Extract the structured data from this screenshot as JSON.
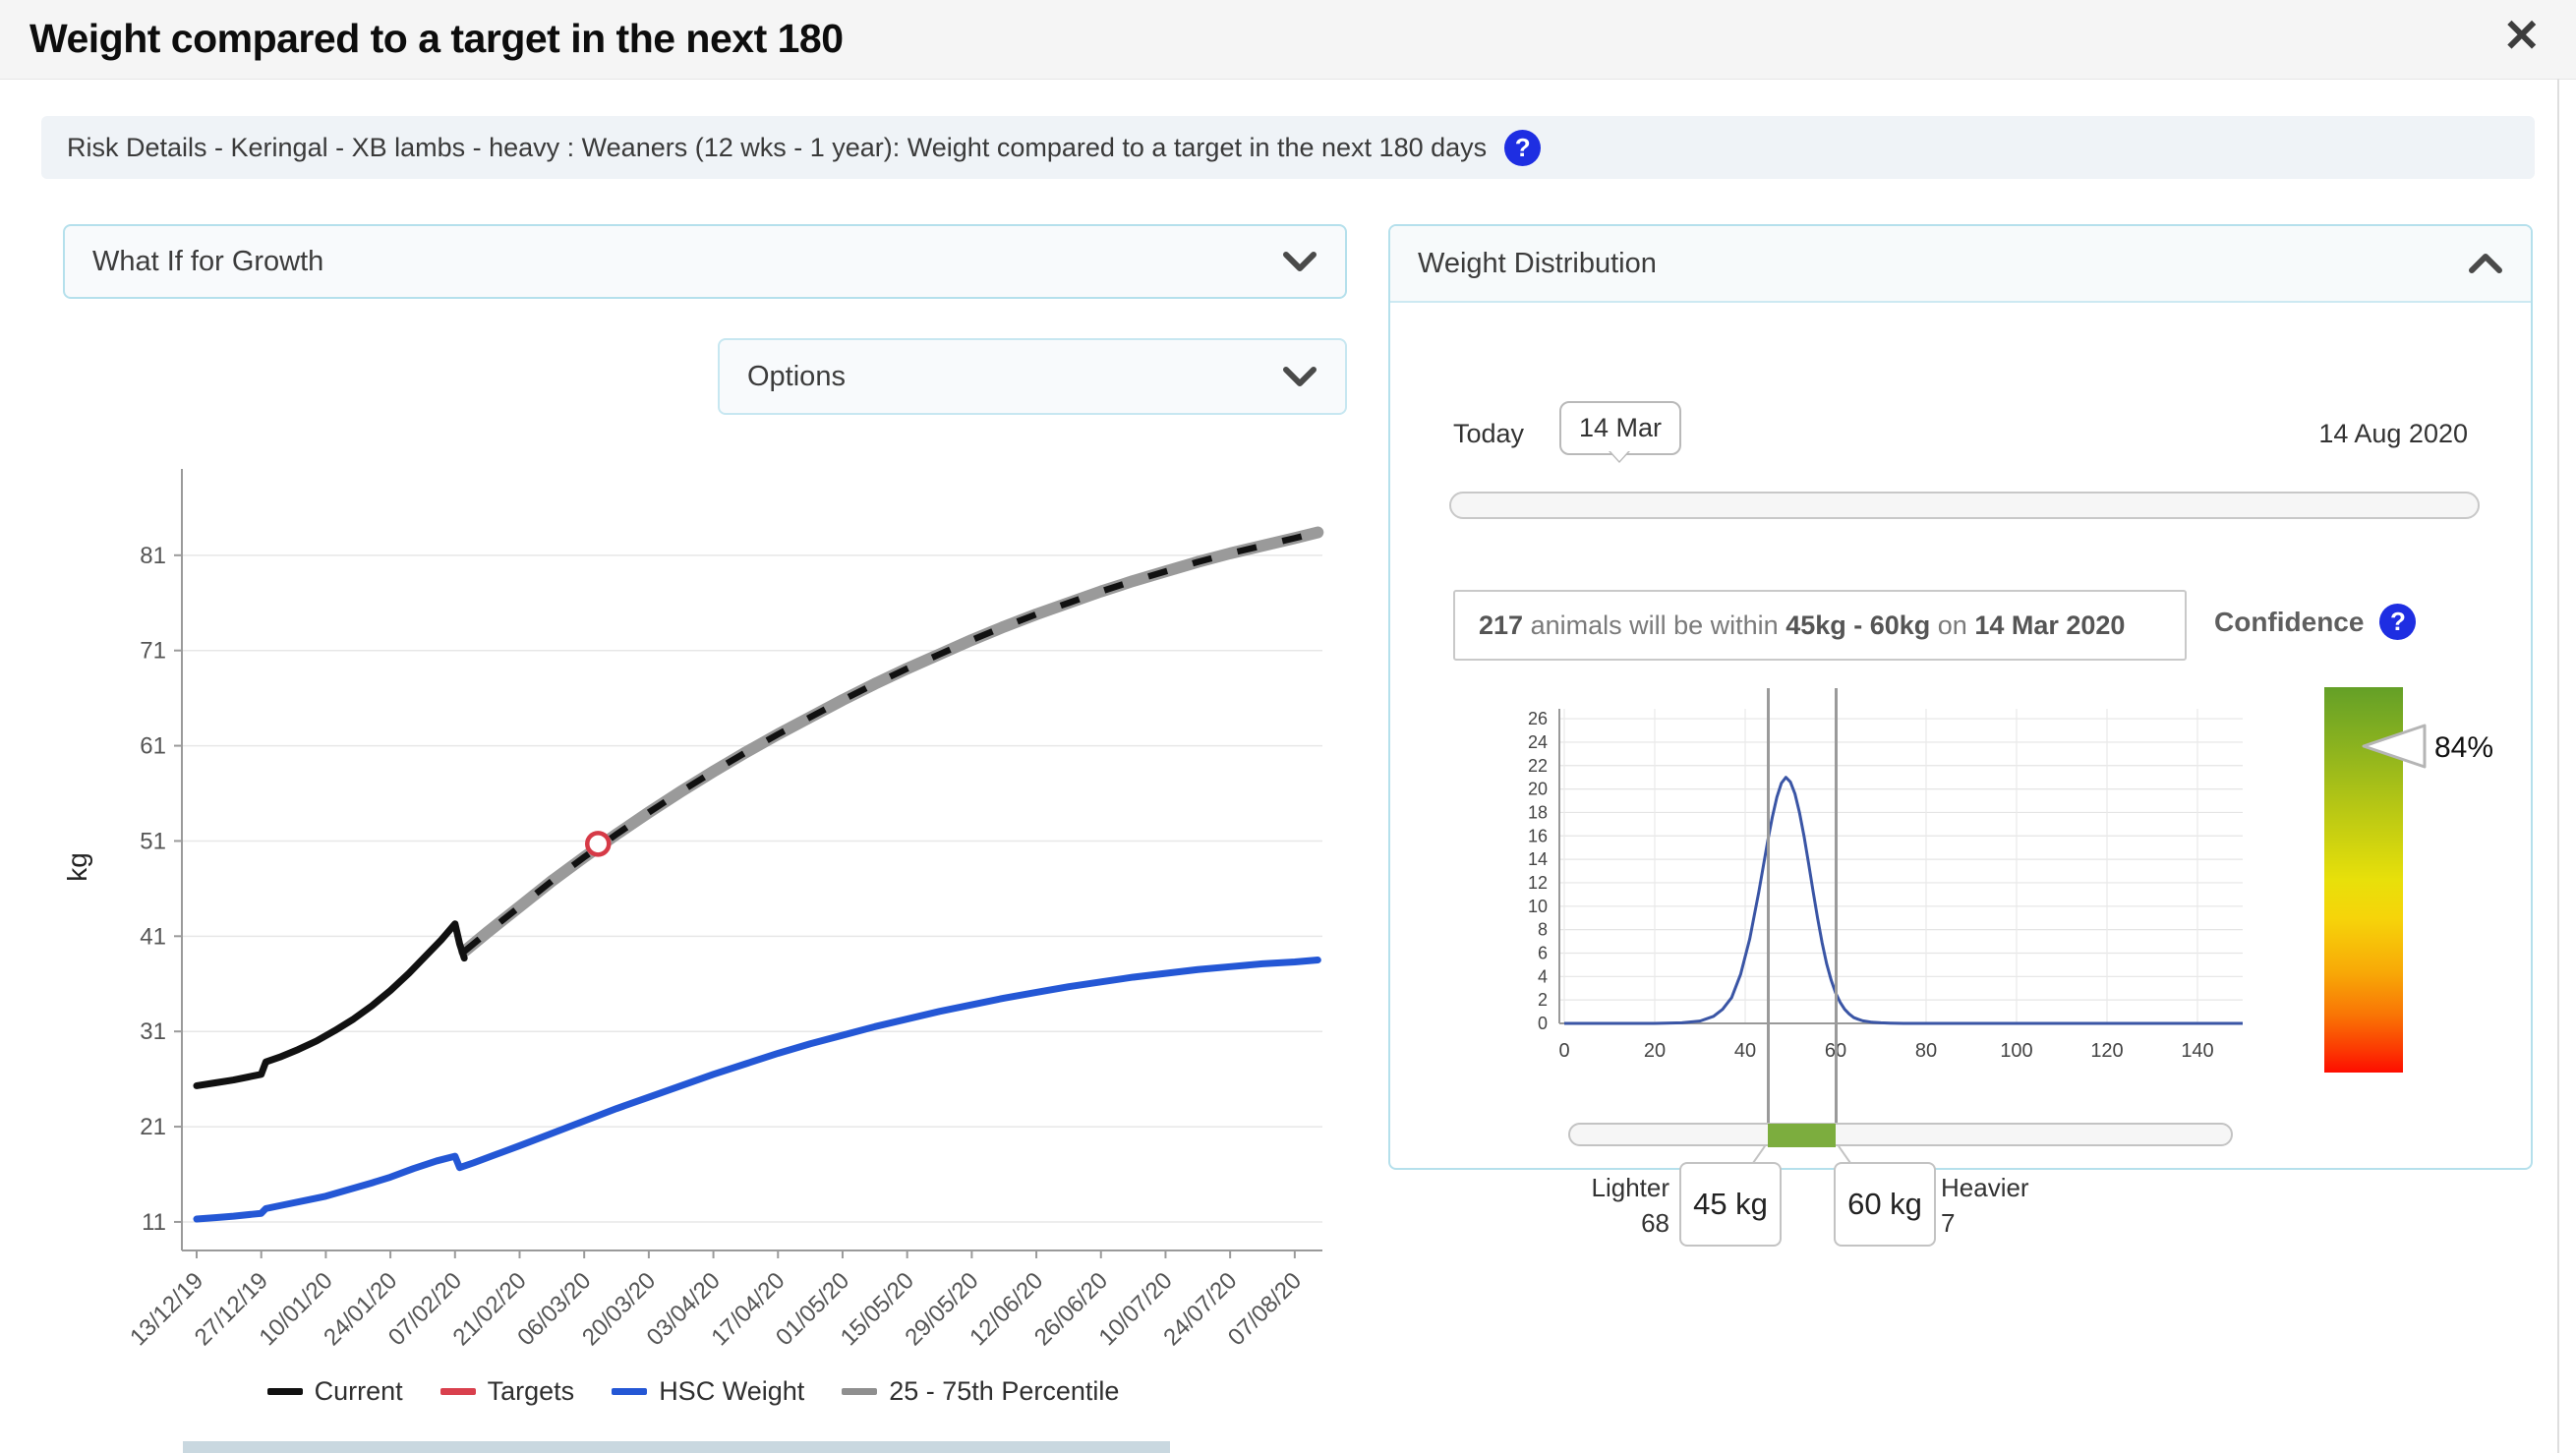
{
  "window": {
    "title": "Weight compared to a target in the next 180",
    "close_icon": "✕"
  },
  "breadcrumb": {
    "text": "Risk Details - Keringal - XB lambs - heavy : Weaners (12 wks - 1 year): Weight compared to a target in the next 180 days",
    "help_icon": "?"
  },
  "what_if": {
    "label": "What If for Growth"
  },
  "options": {
    "label": "Options"
  },
  "legend": [
    {
      "label": "Current",
      "color": "#111111"
    },
    {
      "label": "Targets",
      "color": "#d9404d"
    },
    {
      "label": "HSC Weight",
      "color": "#2457d5"
    },
    {
      "label": "25 - 75th Percentile",
      "color": "#8f8f8f"
    }
  ],
  "weight_distribution": {
    "header": "Weight Distribution",
    "today_label": "Today",
    "today_value": "14 Mar",
    "end_date": "14 Aug 2020",
    "summary": {
      "count": "217",
      "text1": " animals will be within ",
      "range": "45kg - 60kg",
      "text2": " on ",
      "date": "14 Mar 2020"
    },
    "confidence_label": "Confidence",
    "confidence_help_icon": "?",
    "confidence_value": "84%",
    "range_slider": {
      "lower_value": "45 kg",
      "upper_value": "60 kg",
      "lighter_label": "Lighter",
      "lighter_count": "68",
      "heavier_label": "Heavier",
      "heavier_count": "7"
    }
  },
  "chart_data": [
    {
      "type": "line",
      "title": "Weight projection",
      "ylabel": "kg",
      "ylim": [
        8,
        88
      ],
      "xlim_days": [
        0,
        244
      ],
      "y_ticks": [
        11,
        21,
        31,
        41,
        51,
        61,
        71,
        81
      ],
      "x_tick_days": [
        0,
        14,
        28,
        42,
        56,
        70,
        84,
        98,
        112,
        126,
        140,
        154,
        168,
        182,
        196,
        210,
        224,
        238
      ],
      "x_tick_labels": [
        "13/12/19",
        "27/12/19",
        "10/01/20",
        "24/01/20",
        "07/02/20",
        "21/02/20",
        "06/03/20",
        "20/03/20",
        "03/04/20",
        "17/04/20",
        "01/05/20",
        "15/05/20",
        "29/05/20",
        "12/06/20",
        "26/06/20",
        "10/07/20",
        "24/07/20",
        "07/08/20"
      ],
      "grid": true,
      "legend_position": "bottom",
      "series": [
        {
          "name": "25 - 75th Percentile + projected Current",
          "color": "#9a9a9a",
          "overlay_color": "#111111",
          "style": "band+dash",
          "points": [
            [
              58,
              39.4
            ],
            [
              63,
              41.4
            ],
            [
              70,
              44.1
            ],
            [
              77,
              46.8
            ],
            [
              84,
              49.3
            ],
            [
              91,
              51.7
            ],
            [
              98,
              54.0
            ],
            [
              105,
              56.2
            ],
            [
              112,
              58.3
            ],
            [
              119,
              60.3
            ],
            [
              126,
              62.2
            ],
            [
              133,
              64.0
            ],
            [
              140,
              65.8
            ],
            [
              147,
              67.5
            ],
            [
              154,
              69.1
            ],
            [
              161,
              70.6
            ],
            [
              168,
              72.1
            ],
            [
              175,
              73.5
            ],
            [
              182,
              74.8
            ],
            [
              189,
              76.0
            ],
            [
              196,
              77.2
            ],
            [
              203,
              78.3
            ],
            [
              210,
              79.3
            ],
            [
              217,
              80.3
            ],
            [
              224,
              81.2
            ],
            [
              231,
              82.0
            ],
            [
              238,
              82.8
            ],
            [
              243,
              83.4
            ]
          ]
        },
        {
          "name": "Current",
          "color": "#111111",
          "style": "solid",
          "points": [
            [
              0,
              25.3
            ],
            [
              4,
              25.6
            ],
            [
              8,
              25.9
            ],
            [
              12,
              26.3
            ],
            [
              14,
              26.5
            ],
            [
              15,
              27.8
            ],
            [
              18,
              28.3
            ],
            [
              22,
              29.1
            ],
            [
              26,
              30.0
            ],
            [
              30,
              31.1
            ],
            [
              34,
              32.3
            ],
            [
              38,
              33.7
            ],
            [
              42,
              35.3
            ],
            [
              46,
              37.1
            ],
            [
              50,
              39.1
            ],
            [
              53,
              40.6
            ],
            [
              56,
              42.3
            ],
            [
              57,
              40.2
            ],
            [
              58,
              38.7
            ]
          ]
        },
        {
          "name": "HSC Weight",
          "color": "#2457d5",
          "style": "solid",
          "points": [
            [
              0,
              11.3
            ],
            [
              4,
              11.45
            ],
            [
              8,
              11.6
            ],
            [
              12,
              11.8
            ],
            [
              14,
              11.9
            ],
            [
              15,
              12.4
            ],
            [
              19,
              12.8
            ],
            [
              24,
              13.3
            ],
            [
              28,
              13.7
            ],
            [
              33,
              14.4
            ],
            [
              38,
              15.1
            ],
            [
              42,
              15.7
            ],
            [
              47,
              16.6
            ],
            [
              52,
              17.4
            ],
            [
              56,
              17.9
            ],
            [
              57,
              16.7
            ],
            [
              60,
              17.2
            ],
            [
              65,
              18.1
            ],
            [
              70,
              19.0
            ],
            [
              77,
              20.3
            ],
            [
              84,
              21.6
            ],
            [
              91,
              22.9
            ],
            [
              98,
              24.1
            ],
            [
              105,
              25.3
            ],
            [
              112,
              26.5
            ],
            [
              119,
              27.6
            ],
            [
              126,
              28.7
            ],
            [
              133,
              29.7
            ],
            [
              140,
              30.6
            ],
            [
              147,
              31.5
            ],
            [
              154,
              32.3
            ],
            [
              161,
              33.1
            ],
            [
              168,
              33.8
            ],
            [
              175,
              34.5
            ],
            [
              182,
              35.1
            ],
            [
              189,
              35.7
            ],
            [
              196,
              36.2
            ],
            [
              203,
              36.7
            ],
            [
              210,
              37.1
            ],
            [
              217,
              37.5
            ],
            [
              224,
              37.8
            ],
            [
              231,
              38.1
            ],
            [
              238,
              38.3
            ],
            [
              243,
              38.5
            ]
          ]
        },
        {
          "name": "Targets",
          "color": "#d63a47",
          "style": "point",
          "points": [
            [
              87,
              50.7
            ]
          ]
        }
      ]
    },
    {
      "type": "line",
      "title": "Weight distribution on selected date",
      "color": "#3a55a5",
      "ylim": [
        0,
        27
      ],
      "xlim": [
        0,
        151
      ],
      "y_ticks": [
        0,
        2,
        4,
        6,
        8,
        10,
        12,
        14,
        16,
        18,
        20,
        22,
        24,
        26
      ],
      "x_ticks": [
        0,
        20,
        40,
        60,
        80,
        100,
        120,
        140
      ],
      "markers_kg": [
        45,
        60
      ],
      "grid": true,
      "points": [
        [
          0,
          0
        ],
        [
          20,
          0
        ],
        [
          26,
          0.05
        ],
        [
          30,
          0.2
        ],
        [
          33,
          0.6
        ],
        [
          35,
          1.2
        ],
        [
          37,
          2.2
        ],
        [
          39,
          4.2
        ],
        [
          41,
          7.2
        ],
        [
          43,
          11.2
        ],
        [
          45,
          15.6
        ],
        [
          46,
          17.6
        ],
        [
          47,
          19.3
        ],
        [
          48,
          20.5
        ],
        [
          49,
          21.0
        ],
        [
          50,
          20.6
        ],
        [
          51,
          19.6
        ],
        [
          52,
          18.0
        ],
        [
          53,
          16.0
        ],
        [
          54,
          13.7
        ],
        [
          55,
          11.3
        ],
        [
          56,
          9.0
        ],
        [
          57,
          6.9
        ],
        [
          58,
          5.1
        ],
        [
          59,
          3.7
        ],
        [
          60,
          2.6
        ],
        [
          61,
          1.8
        ],
        [
          62,
          1.2
        ],
        [
          63,
          0.8
        ],
        [
          64,
          0.5
        ],
        [
          65,
          0.35
        ],
        [
          66,
          0.22
        ],
        [
          68,
          0.1
        ],
        [
          70,
          0.05
        ],
        [
          72,
          0.02
        ],
        [
          75,
          0
        ],
        [
          150,
          0
        ]
      ]
    }
  ]
}
